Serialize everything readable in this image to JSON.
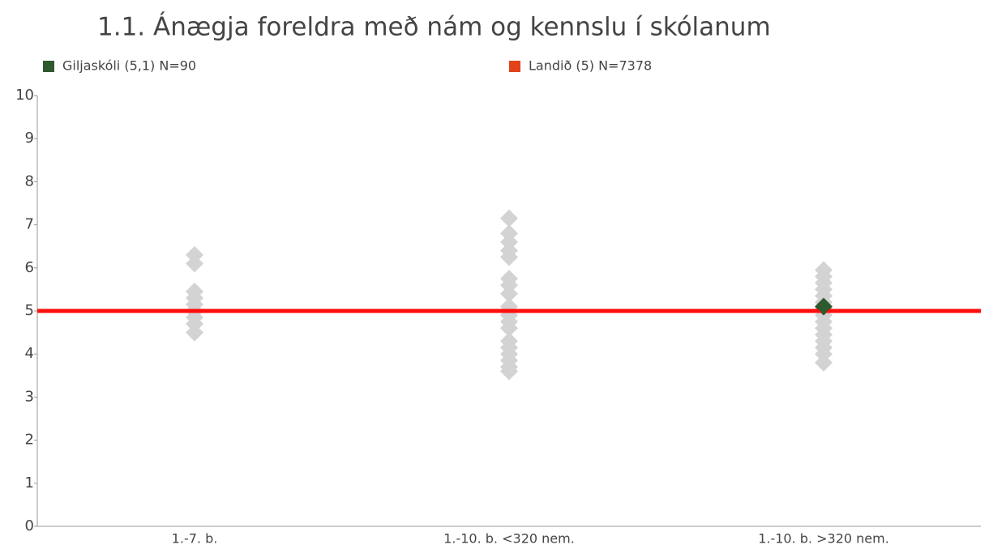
{
  "chart_data": {
    "type": "strip",
    "title": "1.1. Ánægja foreldra með nám og kennslu í skólanum",
    "categories": [
      "1.-7. b.",
      "1.-10. b. <320 nem.",
      "1.-10. b. >320 nem."
    ],
    "ylim": [
      0,
      10
    ],
    "yticks": [
      0,
      1,
      2,
      3,
      4,
      5,
      6,
      7,
      8,
      9,
      10
    ],
    "series": [
      {
        "color": "#d3d3d3",
        "values": [
          [
            6.3,
            6.1,
            5.45,
            5.3,
            5.15,
            5.0,
            4.85,
            4.7,
            4.5
          ],
          [
            7.15,
            6.8,
            6.6,
            6.4,
            6.25,
            5.75,
            5.6,
            5.4,
            5.1,
            5.0,
            4.9,
            4.75,
            4.6,
            4.3,
            4.15,
            4.0,
            3.85,
            3.7,
            3.6
          ],
          [
            5.95,
            5.8,
            5.65,
            5.5,
            5.35,
            5.2,
            5.05,
            4.9,
            4.75,
            4.6,
            4.45,
            4.3,
            4.15,
            4.0,
            3.8
          ]
        ]
      },
      {
        "name": "Giljaskóli (5,1) N=90",
        "color": "#2e5a2e",
        "values": [
          [],
          [],
          [
            5.1
          ]
        ]
      }
    ],
    "reference_line": {
      "name": "Landið (5) N=7378",
      "value": 5,
      "color": "#e2431a",
      "line_color": "#ff0d0d"
    }
  }
}
